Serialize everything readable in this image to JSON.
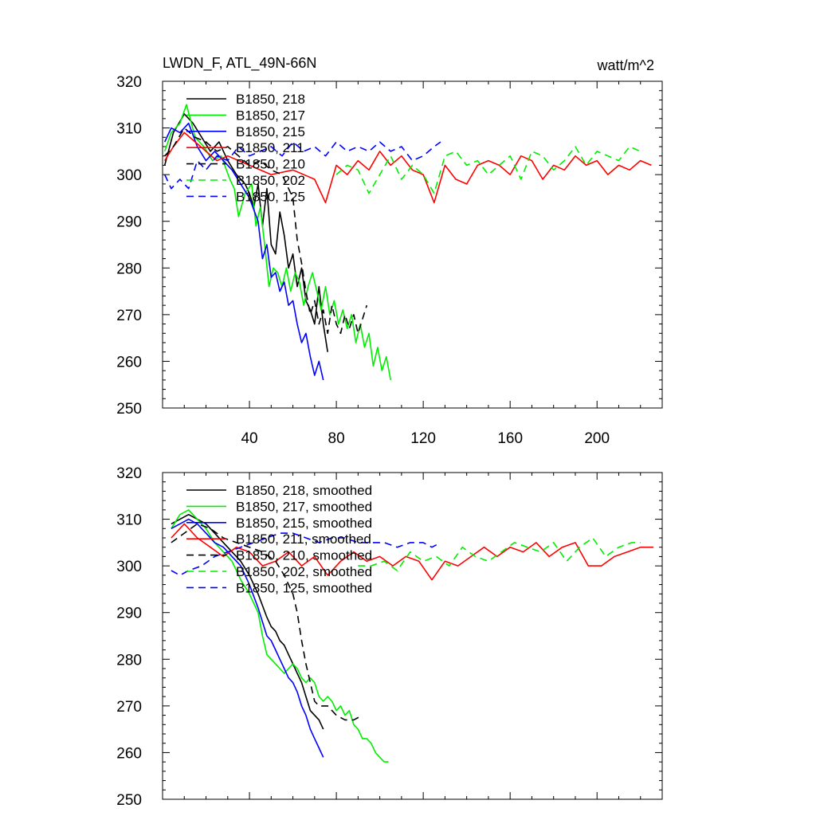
{
  "chart_data": [
    {
      "type": "line",
      "title": "LWDN_F, ATL_49N-66N",
      "units": "watt/m^2",
      "xlabel": "",
      "ylabel": "",
      "xlim": [
        0,
        230
      ],
      "ylim": [
        250,
        320
      ],
      "x_ticks": [
        40,
        80,
        120,
        160,
        200
      ],
      "x_tick_labels": [
        "40",
        "80",
        "120",
        "160",
        "200"
      ],
      "y_ticks": [
        250,
        260,
        270,
        280,
        290,
        300,
        310,
        320
      ],
      "y_tick_labels": [
        "250",
        "260",
        "270",
        "280",
        "290",
        "300",
        "310",
        "320"
      ],
      "legend_position": "top-left",
      "series": [
        {
          "name": "B1850, 218",
          "color": "#000000",
          "dash": "solid",
          "x": [
            1,
            5,
            10,
            14,
            18,
            22,
            26,
            30,
            34,
            38,
            40,
            42,
            44,
            46,
            48,
            50,
            52,
            54,
            56,
            58,
            60,
            62,
            64,
            66,
            68,
            70,
            72,
            74,
            76
          ],
          "y": [
            302,
            309,
            313,
            311,
            308,
            305,
            307,
            303,
            300,
            298,
            296,
            293,
            298,
            289,
            297,
            285,
            283,
            292,
            287,
            280,
            283,
            276,
            280,
            273,
            271,
            268,
            276,
            268,
            262
          ]
        },
        {
          "name": "B1850, 217",
          "color": "#00ee00",
          "dash": "solid",
          "x": [
            1,
            4,
            8,
            11,
            15,
            19,
            23,
            27,
            31,
            33,
            35,
            38,
            41,
            43,
            45,
            47,
            49,
            51,
            53,
            55,
            57,
            59,
            61,
            63,
            65,
            67,
            69,
            71,
            73,
            75,
            77,
            79,
            81,
            83,
            85,
            87,
            89,
            91,
            93,
            95,
            97,
            99,
            101,
            103,
            105
          ],
          "y": [
            305,
            309,
            311,
            315,
            308,
            306,
            303,
            304,
            299,
            297,
            291,
            296,
            298,
            289,
            293,
            285,
            276,
            280,
            279,
            276,
            280,
            275,
            279,
            277,
            272,
            276,
            279,
            275,
            271,
            276,
            270,
            273,
            268,
            271,
            267,
            270,
            264,
            268,
            263,
            266,
            259,
            263,
            258,
            261,
            256
          ]
        },
        {
          "name": "B1850, 215",
          "color": "#0000ff",
          "dash": "solid",
          "x": [
            1,
            4,
            8,
            12,
            16,
            20,
            24,
            28,
            32,
            36,
            40,
            44,
            46,
            48,
            50,
            52,
            54,
            56,
            58,
            60,
            62,
            64,
            66,
            68,
            70,
            72,
            74
          ],
          "y": [
            307,
            310,
            309,
            311,
            306,
            303,
            305,
            303,
            301,
            298,
            295,
            290,
            282,
            285,
            278,
            279,
            275,
            277,
            272,
            273,
            268,
            264,
            266,
            261,
            257,
            260,
            256
          ]
        },
        {
          "name": "B1850, 211",
          "color": "#ff0000",
          "dash": "solid",
          "x": [
            1,
            5,
            10,
            15,
            20,
            25,
            30,
            40,
            50,
            60,
            70,
            75,
            80,
            85,
            90,
            95,
            100,
            105,
            110,
            115,
            120,
            125,
            130,
            135,
            140,
            145,
            150,
            155,
            160,
            165,
            170,
            175,
            180,
            185,
            190,
            195,
            200,
            205,
            210,
            215,
            220,
            225
          ],
          "y": [
            303,
            306,
            309,
            307,
            305,
            303,
            304,
            302,
            300,
            301,
            299,
            294,
            302,
            300,
            303,
            301,
            305,
            302,
            304,
            301,
            300,
            294,
            302,
            299,
            298,
            302,
            303,
            302,
            300,
            304,
            303,
            299,
            302,
            301,
            304,
            302,
            303,
            300,
            302,
            301,
            303,
            302
          ]
        },
        {
          "name": "B1850, 210",
          "color": "#000000",
          "dash": "dashed",
          "x": [
            1,
            5,
            10,
            15,
            20,
            25,
            30,
            35,
            40,
            45,
            50,
            55,
            60,
            62,
            64,
            66,
            68,
            70,
            72,
            74,
            76,
            78,
            80,
            82,
            84,
            86,
            88,
            90,
            92,
            94
          ],
          "y": [
            304,
            306,
            310,
            308,
            307,
            305,
            306,
            304,
            302,
            303,
            301,
            300,
            295,
            286,
            281,
            275,
            270,
            273,
            268,
            271,
            266,
            272,
            268,
            266,
            270,
            267,
            270,
            266,
            269,
            272
          ]
        },
        {
          "name": "B1850, 202",
          "color": "#00ee00",
          "dash": "dashed",
          "x": [
            80,
            85,
            90,
            95,
            100,
            105,
            110,
            115,
            120,
            125,
            130,
            135,
            140,
            145,
            150,
            155,
            160,
            165,
            170,
            175,
            180,
            185,
            190,
            195,
            200,
            205,
            210,
            215,
            220
          ],
          "y": [
            300,
            302,
            301,
            296,
            300,
            304,
            299,
            302,
            300,
            296,
            304,
            305,
            302,
            303,
            300,
            302,
            304,
            299,
            305,
            304,
            301,
            303,
            306,
            302,
            305,
            304,
            303,
            306,
            305
          ]
        },
        {
          "name": "B1850, 125",
          "color": "#0000ff",
          "dash": "dashed",
          "x": [
            1,
            4,
            8,
            12,
            16,
            20,
            25,
            30,
            35,
            40,
            45,
            50,
            55,
            60,
            65,
            70,
            75,
            80,
            85,
            90,
            95,
            100,
            105,
            110,
            115,
            120,
            125,
            128
          ],
          "y": [
            300,
            297,
            299,
            297,
            303,
            301,
            304,
            303,
            306,
            304,
            305,
            306,
            304,
            307,
            305,
            306,
            304,
            307,
            305,
            306,
            305,
            307,
            305,
            306,
            303,
            304,
            306,
            307
          ]
        }
      ]
    },
    {
      "type": "line",
      "title": "",
      "xlabel": "",
      "ylabel": "",
      "xlim": [
        0,
        230
      ],
      "ylim": [
        250,
        320
      ],
      "x_ticks": [
        40,
        80,
        120,
        160,
        200
      ],
      "y_ticks": [
        250,
        260,
        270,
        280,
        290,
        300,
        310,
        320
      ],
      "y_tick_labels": [
        "250",
        "260",
        "270",
        "280",
        "290",
        "300",
        "310",
        "320"
      ],
      "legend_position": "top-left",
      "series": [
        {
          "name": "B1850, 218, smoothed",
          "color": "#000000",
          "dash": "solid",
          "x": [
            4,
            8,
            12,
            16,
            20,
            24,
            28,
            32,
            36,
            40,
            44,
            48,
            50,
            52,
            54,
            56,
            58,
            60,
            62,
            64,
            66,
            68,
            70,
            72,
            74
          ],
          "y": [
            309,
            310,
            311,
            310,
            309,
            307,
            305,
            303,
            301,
            298,
            294,
            289,
            287,
            286,
            284,
            283,
            281,
            279,
            277,
            275,
            272,
            269,
            268,
            267,
            265
          ]
        },
        {
          "name": "B1850, 217, smoothed",
          "color": "#00ee00",
          "dash": "solid",
          "x": [
            4,
            8,
            12,
            16,
            20,
            24,
            28,
            32,
            36,
            40,
            44,
            46,
            48,
            50,
            52,
            54,
            56,
            58,
            60,
            62,
            64,
            66,
            68,
            70,
            72,
            74,
            76,
            78,
            80,
            82,
            84,
            86,
            88,
            90,
            92,
            94,
            96,
            98,
            100,
            102,
            104
          ],
          "y": [
            308,
            311,
            312,
            310,
            308,
            305,
            303,
            301,
            297,
            294,
            290,
            285,
            281,
            280,
            279,
            278,
            277,
            278,
            279,
            278,
            276,
            275,
            276,
            275,
            272,
            271,
            272,
            271,
            269,
            270,
            268,
            269,
            266,
            265,
            263,
            263,
            262,
            260,
            259,
            258,
            258
          ]
        },
        {
          "name": "B1850, 215, smoothed",
          "color": "#0000ff",
          "dash": "solid",
          "x": [
            4,
            8,
            12,
            16,
            20,
            24,
            28,
            32,
            36,
            40,
            44,
            48,
            50,
            52,
            54,
            56,
            58,
            60,
            62,
            64,
            66,
            68,
            70,
            72,
            74
          ],
          "y": [
            308,
            309,
            310,
            309,
            307,
            305,
            304,
            302,
            300,
            296,
            291,
            285,
            284,
            282,
            280,
            278,
            276,
            275,
            273,
            270,
            268,
            265,
            263,
            261,
            259
          ]
        },
        {
          "name": "B1850, 211, smoothed",
          "color": "#ff0000",
          "dash": "solid",
          "x": [
            4,
            10,
            16,
            22,
            28,
            34,
            40,
            46,
            52,
            58,
            64,
            70,
            76,
            82,
            88,
            94,
            100,
            106,
            112,
            118,
            124,
            130,
            136,
            142,
            148,
            154,
            160,
            166,
            172,
            178,
            184,
            190,
            196,
            202,
            208,
            214,
            220,
            226
          ],
          "y": [
            306,
            309,
            306,
            304,
            302,
            304,
            303,
            300,
            301,
            303,
            300,
            302,
            298,
            301,
            303,
            301,
            302,
            300,
            302,
            301,
            297,
            301,
            300,
            302,
            304,
            302,
            304,
            303,
            305,
            302,
            304,
            305,
            300,
            300,
            302,
            303,
            304,
            304
          ]
        },
        {
          "name": "B1850, 210, smoothed",
          "color": "#000000",
          "dash": "dashed",
          "x": [
            4,
            10,
            16,
            22,
            28,
            34,
            40,
            46,
            52,
            56,
            60,
            62,
            64,
            66,
            68,
            70,
            72,
            74,
            76,
            78,
            80,
            84,
            88,
            92
          ],
          "y": [
            305,
            307,
            309,
            308,
            306,
            305,
            304,
            303,
            301,
            298,
            294,
            290,
            284,
            279,
            275,
            271,
            270,
            270,
            270,
            269,
            268,
            267,
            267,
            268
          ]
        },
        {
          "name": "B1850, 202, smoothed",
          "color": "#00ee00",
          "dash": "dashed",
          "x": [
            90,
            96,
            102,
            108,
            114,
            120,
            126,
            132,
            138,
            144,
            150,
            156,
            162,
            168,
            174,
            180,
            186,
            192,
            198,
            204,
            210,
            216,
            220
          ],
          "y": [
            300,
            300,
            301,
            299,
            303,
            301,
            302,
            300,
            304,
            302,
            301,
            303,
            305,
            304,
            303,
            305,
            301,
            304,
            306,
            302,
            304,
            305,
            305
          ]
        },
        {
          "name": "B1850, 125, smoothed",
          "color": "#0000ff",
          "dash": "dashed",
          "x": [
            4,
            8,
            12,
            18,
            24,
            30,
            36,
            42,
            48,
            54,
            60,
            66,
            72,
            78,
            84,
            90,
            96,
            102,
            108,
            114,
            120,
            124,
            128
          ],
          "y": [
            299,
            298,
            299,
            300,
            302,
            303,
            304,
            305,
            306,
            307,
            307,
            306,
            305,
            306,
            306,
            305,
            305,
            305,
            304,
            305,
            305,
            304,
            305
          ]
        }
      ]
    }
  ]
}
